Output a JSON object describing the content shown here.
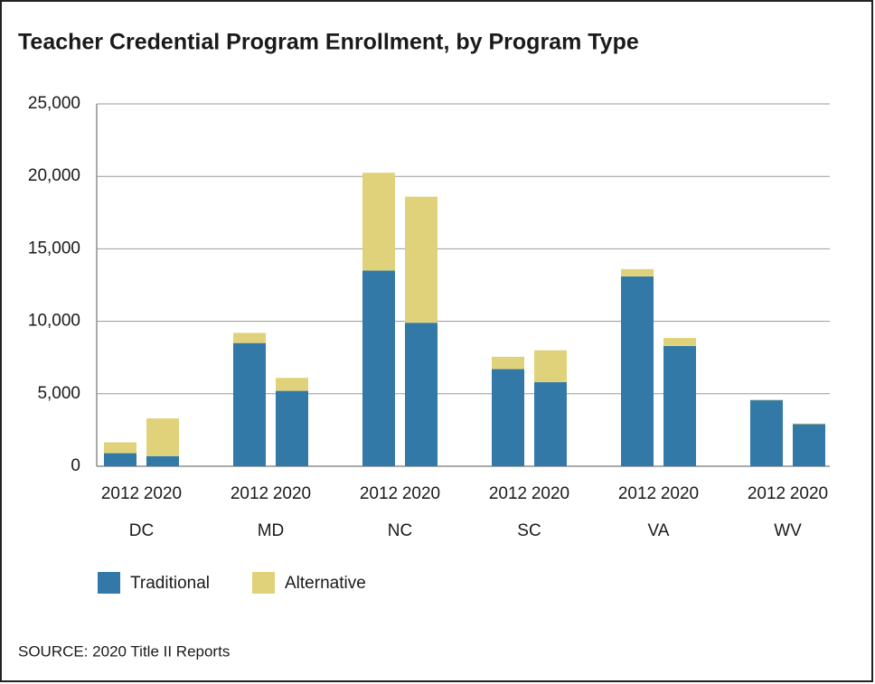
{
  "chart_data": {
    "type": "stacked-bar",
    "title": "Teacher Credential Program Enrollment, by Program Type",
    "categories": [
      "2012",
      "2020",
      "2012",
      "2020",
      "2012",
      "2020",
      "2012",
      "2020",
      "2012",
      "2020",
      "2012",
      "2020"
    ],
    "groups": [
      "DC",
      "MD",
      "NC",
      "SC",
      "VA",
      "WV"
    ],
    "series": [
      {
        "name": "Traditional",
        "color": "#3279a8",
        "values": [
          900,
          700,
          8500,
          5200,
          13500,
          9900,
          6700,
          5800,
          13100,
          8300,
          4550,
          2900
        ]
      },
      {
        "name": "Alternative",
        "color": "#e0d27a",
        "values": [
          750,
          2600,
          700,
          900,
          6750,
          8700,
          850,
          2200,
          500,
          550,
          50,
          50
        ]
      }
    ],
    "ylim": [
      0,
      25000
    ],
    "yticks": [
      0,
      {
        "value": 5000,
        "label": "5,000"
      },
      {
        "value": 10000,
        "label": "10,000"
      },
      {
        "value": 15000,
        "label": "15,000"
      },
      {
        "value": 20000,
        "label": "20,000"
      },
      {
        "value": 25000,
        "label": "25,000"
      }
    ],
    "grid": true,
    "source": "SOURCE: 2020 Title II Reports"
  }
}
